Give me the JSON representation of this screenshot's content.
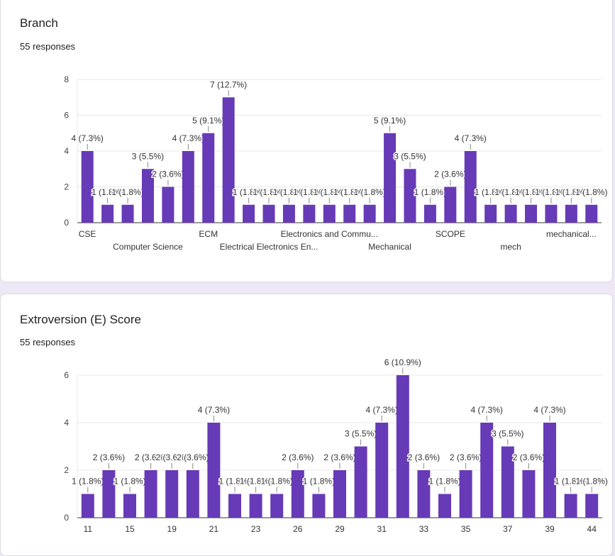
{
  "colors": {
    "bar": "#673ab7",
    "page_bg": "#ede7f6",
    "grid": "#e8e8e8",
    "axis": "#333333",
    "text": "#202124"
  },
  "card1": {
    "title": "Branch",
    "subtitle": "55 responses"
  },
  "card2": {
    "title": "Extroversion (E) Score",
    "subtitle": "55 responses"
  },
  "chart_data": [
    {
      "type": "bar",
      "title": "Branch",
      "ylim": [
        0,
        8
      ],
      "yticks": [
        0,
        2,
        4,
        6,
        8
      ],
      "grid": true,
      "values": [
        4,
        1,
        1,
        3,
        2,
        4,
        5,
        7,
        1,
        1,
        1,
        1,
        1,
        1,
        1,
        5,
        3,
        1,
        2,
        4,
        1,
        1,
        1,
        1,
        1,
        1
      ],
      "bar_labels": [
        "4 (7.3%)",
        "1 (1.8%)",
        "1 (1.8%)",
        "3 (5.5%)",
        "2 (3.6%)",
        "4 (7.3%)",
        "5 (9.1%)",
        "7 (12.7%)",
        "1 (1.8%)",
        "1 (1.8%)",
        "1 (1.8%)",
        "1 (1.8%)",
        "1 (1.8%)",
        "1 (1.8%)",
        "1 (1.8%)",
        "5 (9.1%)",
        "3 (5.5%)",
        "1 (1.8%)",
        "2 (3.6%)",
        "4 (7.3%)",
        "1 (1.8%)",
        "1 (1.8%)",
        "1 (1.8%)",
        "1 (1.8%)",
        "1 (1.8%)",
        "1 (1.8%)"
      ],
      "x_tick_labels": [
        {
          "index": 0,
          "text": "CSE",
          "row": 0
        },
        {
          "index": 3,
          "text": "Computer Science",
          "row": 1
        },
        {
          "index": 6,
          "text": "ECM",
          "row": 0
        },
        {
          "index": 9,
          "text": "Electrical Electronics En...",
          "row": 1
        },
        {
          "index": 12,
          "text": "Electronics and Commu...",
          "row": 0
        },
        {
          "index": 15,
          "text": "Mechanical",
          "row": 1
        },
        {
          "index": 18,
          "text": "SCOPE",
          "row": 0
        },
        {
          "index": 21,
          "text": "mech",
          "row": 1
        },
        {
          "index": 24,
          "text": "mechanical...",
          "row": 0
        }
      ]
    },
    {
      "type": "bar",
      "title": "Extroversion (E) Score",
      "ylim": [
        0,
        6
      ],
      "yticks": [
        0,
        2,
        4,
        6
      ],
      "grid": true,
      "values": [
        1,
        2,
        1,
        2,
        2,
        2,
        4,
        1,
        1,
        1,
        2,
        1,
        2,
        3,
        4,
        6,
        2,
        1,
        2,
        4,
        3,
        2,
        4,
        1,
        1
      ],
      "bar_labels": [
        "1 (1.8%)",
        "2 (3.6%)",
        "1 (1.8%)",
        "2 (3.6%)",
        "2 (3.6%)",
        "2 (3.6%)",
        "4 (7.3%)",
        "1 (1.8%)",
        "1 (1.8%)",
        "1 (1.8%)",
        "2 (3.6%)",
        "1 (1.8%)",
        "2 (3.6%)",
        "3 (5.5%)",
        "4 (7.3%)",
        "6 (10.9%)",
        "2 (3.6%)",
        "1 (1.8%)",
        "2 (3.6%)",
        "4 (7.3%)",
        "3 (5.5%)",
        "2 (3.6%)",
        "4 (7.3%)",
        "1 (1.8%)",
        "1 (1.8%)"
      ],
      "x_tick_labels": [
        {
          "index": 0,
          "text": "11"
        },
        {
          "index": 2,
          "text": "15"
        },
        {
          "index": 4,
          "text": "19"
        },
        {
          "index": 6,
          "text": "21"
        },
        {
          "index": 8,
          "text": "23"
        },
        {
          "index": 10,
          "text": "26"
        },
        {
          "index": 12,
          "text": "29"
        },
        {
          "index": 14,
          "text": "31"
        },
        {
          "index": 16,
          "text": "33"
        },
        {
          "index": 18,
          "text": "35"
        },
        {
          "index": 20,
          "text": "37"
        },
        {
          "index": 22,
          "text": "39"
        },
        {
          "index": 24,
          "text": "44"
        }
      ]
    }
  ]
}
